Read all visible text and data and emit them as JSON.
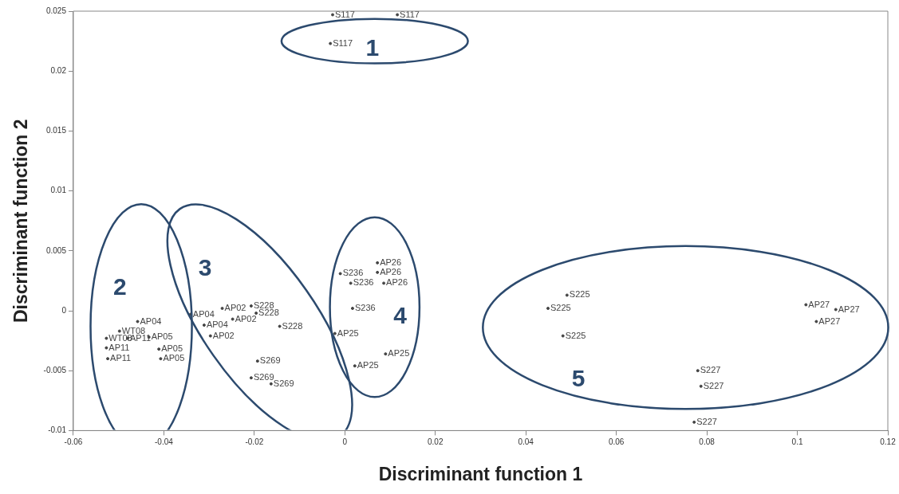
{
  "chart_data": {
    "type": "scatter",
    "xlabel": "Discriminant function 1",
    "ylabel": "Discriminant function 2",
    "xlim": [
      -0.06,
      0.12
    ],
    "xticks": [
      -0.06,
      -0.04,
      -0.02,
      0,
      0.02,
      0.04,
      0.06,
      0.08,
      0.1,
      0.12
    ],
    "ylim": [
      -0.01,
      0.025
    ],
    "yticks": [
      -0.01,
      -0.005,
      0,
      0.005,
      0.01,
      0.015,
      0.02,
      0.025
    ],
    "grid": false,
    "legend": false,
    "marker": "circle",
    "series": [
      {
        "color": "#444444",
        "x": [
          -0.0027,
          0.0116,
          -0.0032,
          -0.0458,
          -0.0498,
          -0.0527,
          -0.048,
          -0.0433,
          -0.0527,
          -0.0524,
          -0.0411,
          -0.0407,
          -0.0341,
          -0.0271,
          -0.0207,
          -0.0196,
          -0.0248,
          -0.0311,
          -0.0144,
          -0.0297,
          -0.0193,
          -0.0207,
          -0.0163,
          0.0072,
          0.0072,
          0.0086,
          -0.001,
          0.0013,
          0.0017,
          -0.0022,
          0.009,
          0.0022,
          0.0491,
          0.0449,
          0.0482,
          0.1019,
          0.1085,
          0.1042,
          0.078,
          0.0787,
          0.0772
        ],
        "values": [
          0.0247,
          0.0247,
          0.0223,
          -0.0009,
          -0.0017,
          -0.0023,
          -0.0023,
          -0.0022,
          -0.0031,
          -0.004,
          -0.0032,
          -0.004,
          -0.0003,
          0.0002,
          0.0004,
          -0.0002,
          -0.0007,
          -0.0012,
          -0.0013,
          -0.0021,
          -0.0042,
          -0.0056,
          -0.0061,
          0.004,
          0.0032,
          0.0023,
          0.0031,
          0.0023,
          0.0002,
          -0.0019,
          -0.0036,
          -0.0046,
          0.0013,
          0.0002,
          -0.0021,
          0.0005,
          0.0001,
          -0.0009,
          -0.005,
          -0.0063,
          -0.0093
        ],
        "value_labels": [
          "S117",
          "S117",
          "S117",
          "AP04",
          "WT08",
          "WT08",
          "AP11",
          "AP05",
          "AP11",
          "AP11",
          "AP05",
          "AP05",
          "AP04",
          "AP02",
          "S228",
          "S228",
          "AP02",
          "AP04",
          "S228",
          "AP02",
          "S269",
          "S269",
          "S269",
          "AP26",
          "AP26",
          "AP26",
          "S236",
          "S236",
          "S236",
          "AP25",
          "AP25",
          "AP25",
          "S225",
          "S225",
          "S225",
          "AP27",
          "AP27",
          "AP27",
          "S227",
          "S227",
          "S227"
        ]
      }
    ],
    "annotations": [
      "1",
      "2",
      "3",
      "4",
      "5"
    ]
  }
}
